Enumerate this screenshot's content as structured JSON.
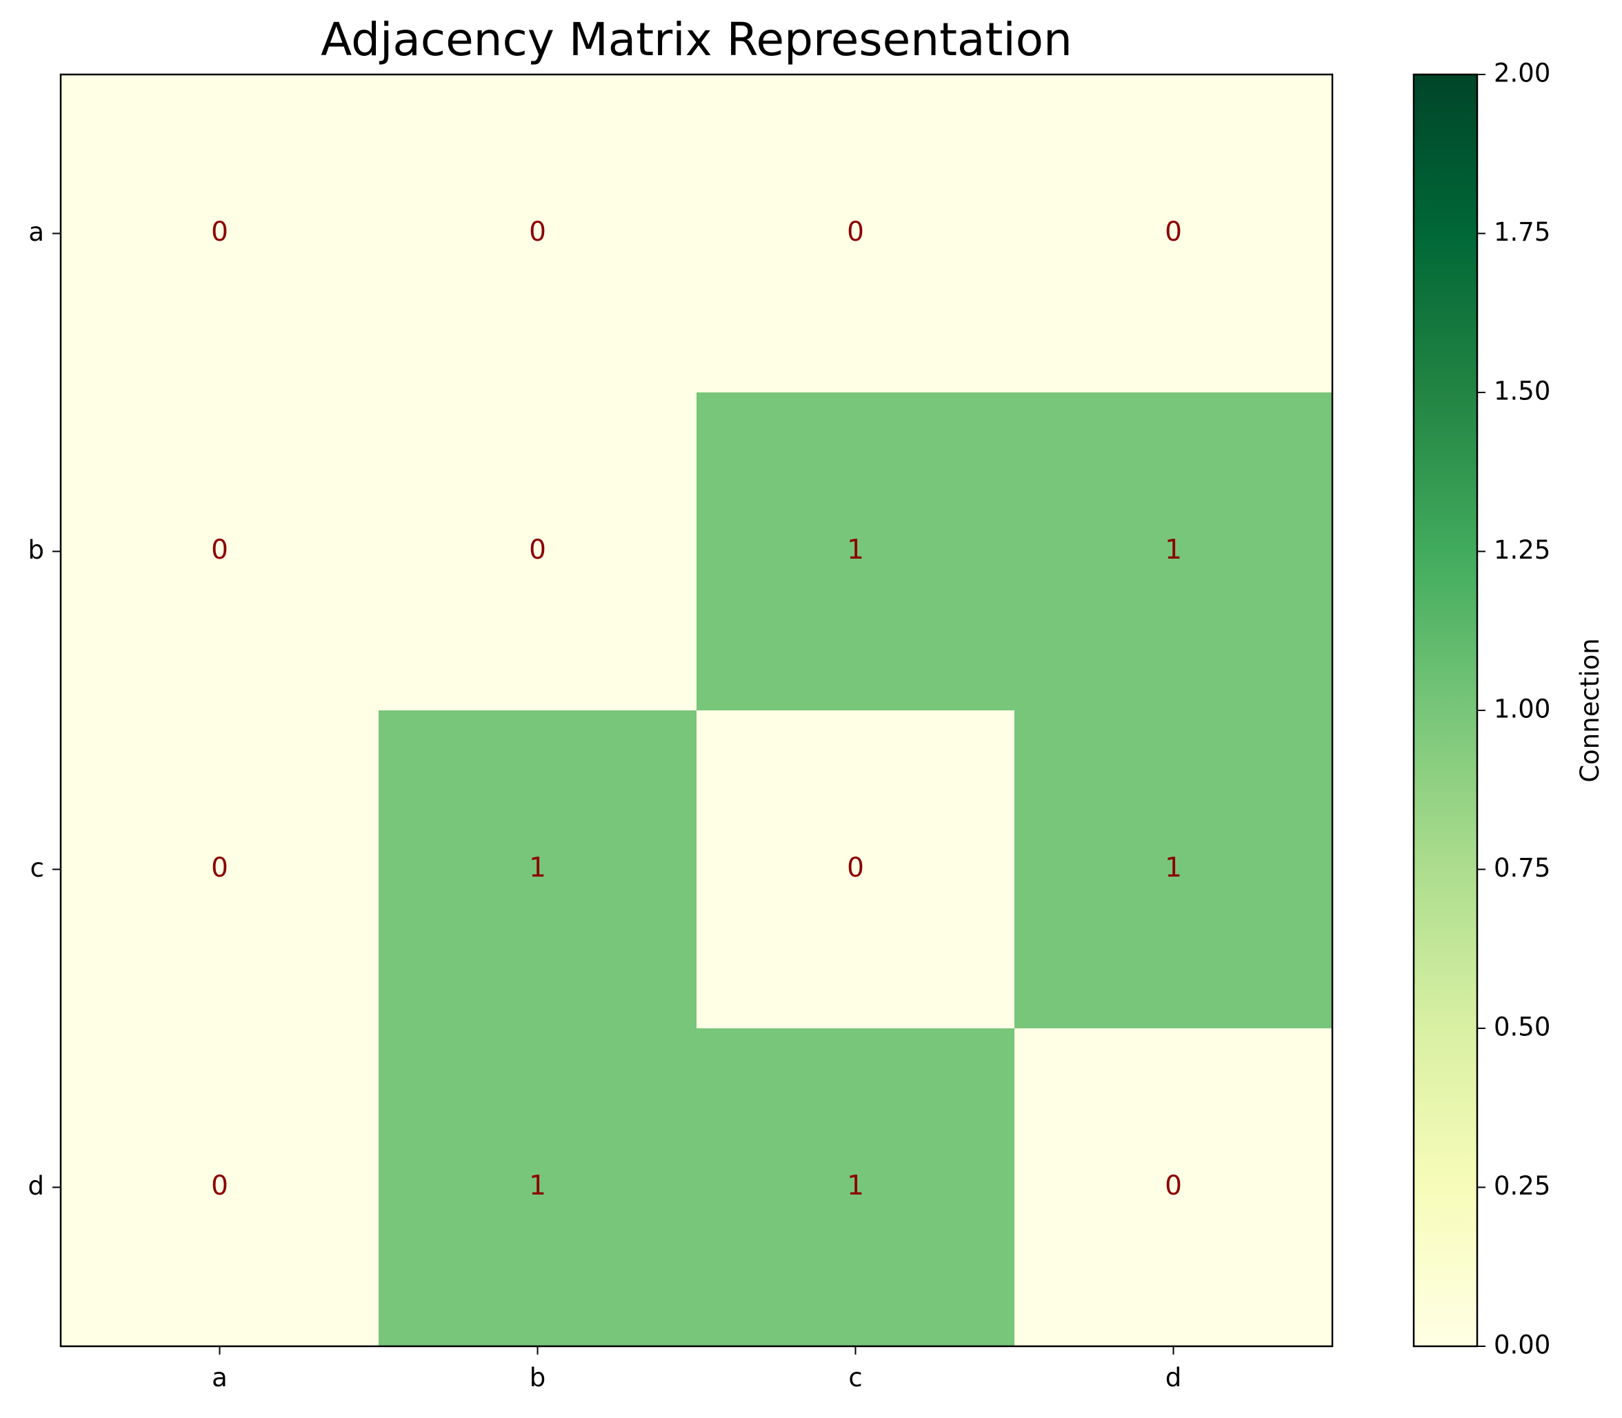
{
  "chart_data": {
    "type": "heatmap",
    "title": "Adjacency Matrix Representation",
    "row_labels": [
      "a",
      "b",
      "c",
      "d"
    ],
    "col_labels": [
      "a",
      "b",
      "c",
      "d"
    ],
    "values": [
      [
        0,
        0,
        0,
        0
      ],
      [
        0,
        0,
        1,
        1
      ],
      [
        0,
        1,
        0,
        1
      ],
      [
        0,
        1,
        1,
        0
      ]
    ],
    "colormap": "YlGn",
    "vmin": 0,
    "vmax": 2,
    "annotation_color": "#8b0000",
    "colorbar": {
      "label": "Connection",
      "ticks": [
        "0.00",
        "0.25",
        "0.50",
        "0.75",
        "1.00",
        "1.25",
        "1.50",
        "1.75",
        "2.00"
      ],
      "stops": [
        "#ffffe5",
        "#f7fcb9",
        "#d9f0a3",
        "#addd8e",
        "#78c679",
        "#41ab5d",
        "#238443",
        "#006837",
        "#004529"
      ]
    }
  }
}
